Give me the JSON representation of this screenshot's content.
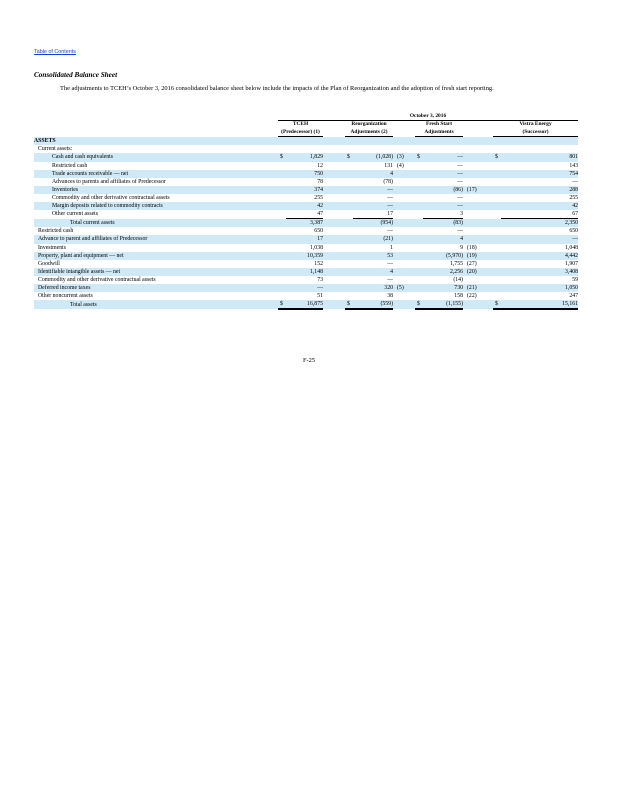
{
  "toc_link": "Table of Contents",
  "title": "Consolidated Balance Sheet",
  "intro": "The adjustments to TCEH’s October 3, 2016 consolidated balance sheet below include the impacts of the Plan of Reorganization and the adoption of fresh start reporting.",
  "table": {
    "period_header": "October 3, 2016",
    "col1_header": [
      "TCEH",
      "(Predecessor) (1)"
    ],
    "col2_header": [
      "Reorganization",
      "Adjustments (2)"
    ],
    "col3_header": [
      "Fresh Start",
      "Adjustments"
    ],
    "col4_header": [
      "Vistra Energy",
      "(Successor)"
    ],
    "section": "ASSETS",
    "subsection": "Current assets:",
    "currency": "$",
    "rows": [
      {
        "label": "Cash and cash equivalents",
        "c1": "1,829",
        "c2": "(1,028)",
        "n2": "(3)",
        "c3": "—",
        "n3": "",
        "c4": "801"
      },
      {
        "label": "Restricted cash",
        "c1": "12",
        "c2": "131",
        "n2": "(4)",
        "c3": "—",
        "n3": "",
        "c4": "143"
      },
      {
        "label": "Trade accounts receivable — net",
        "c1": "750",
        "c2": "4",
        "n2": "",
        "c3": "—",
        "n3": "",
        "c4": "754"
      },
      {
        "label": "Advances to parents and affiliates of Predecessor",
        "c1": "78",
        "c2": "(78)",
        "n2": "",
        "c3": "—",
        "n3": "",
        "c4": "—"
      },
      {
        "label": "Inventories",
        "c1": "374",
        "c2": "—",
        "n2": "",
        "c3": "(86)",
        "n3": "(17)",
        "c4": "288"
      },
      {
        "label": "Commodity and other derivative contractual assets",
        "c1": "255",
        "c2": "—",
        "n2": "",
        "c3": "—",
        "n3": "",
        "c4": "255"
      },
      {
        "label": "Margin deposits related to commodity contracts",
        "c1": "42",
        "c2": "—",
        "n2": "",
        "c3": "—",
        "n3": "",
        "c4": "42"
      },
      {
        "label": "Other current assets",
        "c1": "47",
        "c2": "17",
        "n2": "",
        "c3": "3",
        "n3": "",
        "c4": "67"
      },
      {
        "label": "Total current assets",
        "c1": "3,387",
        "c2": "(954)",
        "n2": "",
        "c3": "(83)",
        "n3": "",
        "c4": "2,350"
      },
      {
        "label": "Restricted cash",
        "c1": "650",
        "c2": "—",
        "n2": "",
        "c3": "—",
        "n3": "",
        "c4": "650"
      },
      {
        "label": "Advance to parent and affiliates of Predecessor",
        "c1": "17",
        "c2": "(21)",
        "n2": "",
        "c3": "4",
        "n3": "",
        "c4": "—"
      },
      {
        "label": "Investments",
        "c1": "1,038",
        "c2": "1",
        "n2": "",
        "c3": "9",
        "n3": "(18)",
        "c4": "1,048"
      },
      {
        "label": "Property, plant and equipment — net",
        "c1": "10,359",
        "c2": "53",
        "n2": "",
        "c3": "(5,970)",
        "n3": "(19)",
        "c4": "4,442"
      },
      {
        "label": "Goodwill",
        "c1": "152",
        "c2": "—",
        "n2": "",
        "c3": "1,755",
        "n3": "(27)",
        "c4": "1,907"
      },
      {
        "label": "Identifiable intangible assets — net",
        "c1": "1,148",
        "c2": "4",
        "n2": "",
        "c3": "2,256",
        "n3": "(20)",
        "c4": "3,408"
      },
      {
        "label": "Commodity and other derivative contractual assets",
        "c1": "73",
        "c2": "—",
        "n2": "",
        "c3": "(14)",
        "n3": "",
        "c4": "59"
      },
      {
        "label": "Deferred income taxes",
        "c1": "—",
        "c2": "320",
        "n2": "(5)",
        "c3": "730",
        "n3": "(21)",
        "c4": "1,050"
      },
      {
        "label": "Other noncurrent assets",
        "c1": "51",
        "c2": "38",
        "n2": "",
        "c3": "158",
        "n3": "(22)",
        "c4": "247"
      },
      {
        "label": "Total assets",
        "c1": "16,875",
        "c2": "(559)",
        "n2": "",
        "c3": "(1,155)",
        "n3": "",
        "c4": "15,161"
      }
    ]
  },
  "page_number": "F-25"
}
